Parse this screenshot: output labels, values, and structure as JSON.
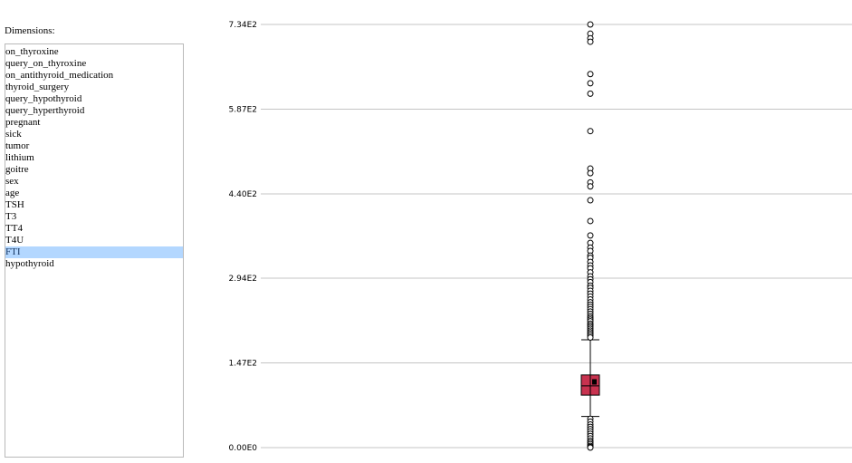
{
  "sidebar": {
    "label": "Dimensions:",
    "items": [
      {
        "label": "on_thyroxine",
        "selected": false
      },
      {
        "label": "query_on_thyroxine",
        "selected": false
      },
      {
        "label": "on_antithyroid_medication",
        "selected": false
      },
      {
        "label": "thyroid_surgery",
        "selected": false
      },
      {
        "label": "query_hypothyroid",
        "selected": false
      },
      {
        "label": "query_hyperthyroid",
        "selected": false
      },
      {
        "label": "pregnant",
        "selected": false
      },
      {
        "label": "sick",
        "selected": false
      },
      {
        "label": "tumor",
        "selected": false
      },
      {
        "label": "lithium",
        "selected": false
      },
      {
        "label": "goitre",
        "selected": false
      },
      {
        "label": "sex",
        "selected": false
      },
      {
        "label": "age",
        "selected": false
      },
      {
        "label": "TSH",
        "selected": false
      },
      {
        "label": "T3",
        "selected": false
      },
      {
        "label": "TT4",
        "selected": false
      },
      {
        "label": "T4U",
        "selected": false
      },
      {
        "label": "FTI",
        "selected": true
      },
      {
        "label": "hypothyroid",
        "selected": false
      }
    ]
  },
  "chart_data": {
    "type": "boxplot",
    "title": "",
    "xlabel": "",
    "ylabel": "",
    "ylim": [
      0,
      734
    ],
    "yticks": [
      {
        "value": 734,
        "label": "7.34E2"
      },
      {
        "value": 587,
        "label": "5.87E2"
      },
      {
        "value": 440,
        "label": "4.40E2"
      },
      {
        "value": 294,
        "label": "2.94E2"
      },
      {
        "value": 147,
        "label": "1.47E2"
      },
      {
        "value": 0,
        "label": "0.00E0"
      }
    ],
    "grid": true,
    "box": {
      "q1": 91,
      "median": 107,
      "q3": 126,
      "mean": 114,
      "whisker_low": 54,
      "whisker_high": 187,
      "color": "#c8324f"
    },
    "outliers_high": [
      734,
      718,
      710,
      704,
      648,
      632,
      614,
      549,
      484,
      476,
      460,
      453,
      429,
      393,
      368,
      355,
      347,
      341,
      333,
      329,
      322,
      316,
      311,
      304,
      297,
      292,
      287,
      281,
      277,
      272,
      267,
      262,
      257,
      252,
      248,
      244,
      240,
      236,
      232,
      228,
      225,
      222,
      219,
      215,
      212,
      209,
      206,
      203,
      200,
      197,
      194,
      191
    ],
    "outliers_low": [
      50,
      45,
      40,
      36,
      32,
      28,
      24,
      20,
      16,
      12,
      9,
      6,
      3,
      1,
      0
    ]
  }
}
